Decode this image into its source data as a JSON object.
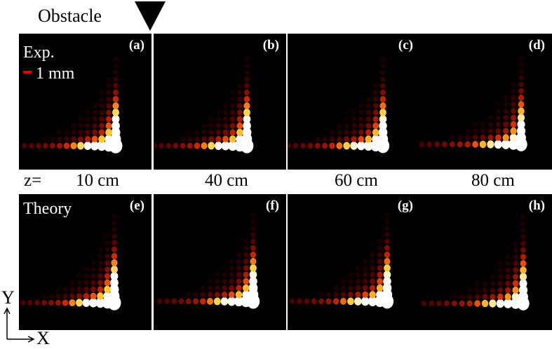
{
  "header": {
    "title": "Obstacle",
    "marker_icon": "down-triangle-icon"
  },
  "rows": {
    "top_label": "Exp.",
    "bottom_label": "Theory",
    "scale_text": "1 mm",
    "scale_color": "#e00000"
  },
  "z_prefix": "z=",
  "distances": [
    "10 cm",
    "40 cm",
    "60 cm",
    "80 cm"
  ],
  "panel_labels": [
    "(a)",
    "(b)",
    "(c)",
    "(d)",
    "(e)",
    "(f)",
    "(g)",
    "(h)"
  ],
  "axes": {
    "y": "Y",
    "x": "X"
  },
  "colormap": [
    "#000000",
    "#8b0000",
    "#ff3300",
    "#ffcc33",
    "#ffffff"
  ]
}
